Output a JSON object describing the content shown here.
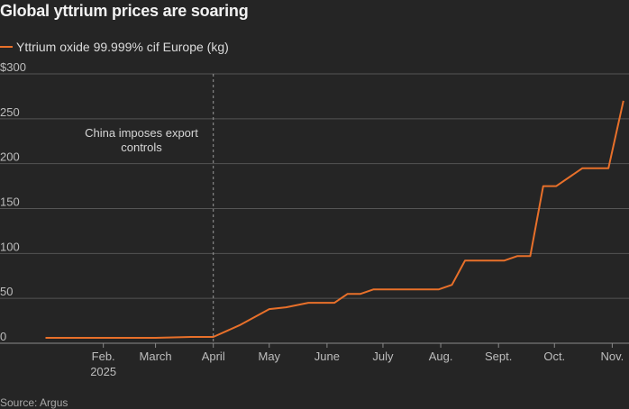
{
  "chart_data": {
    "type": "line",
    "title": "Global yttrium prices are soaring",
    "source": "Source: Argus",
    "y_tick_labels": [
      "$300",
      "250",
      "200",
      "150",
      "100",
      "50",
      "0"
    ],
    "y_ticks": [
      300,
      250,
      200,
      150,
      100,
      50,
      0
    ],
    "ylim": [
      0,
      300
    ],
    "xlim": [
      "2024-12-24",
      "2025-11-10"
    ],
    "x_ticks": [
      {
        "date": "2025-02-01",
        "label": "Feb.",
        "sub": "2025"
      },
      {
        "date": "2025-03-01",
        "label": "March"
      },
      {
        "date": "2025-04-01",
        "label": "April"
      },
      {
        "date": "2025-05-01",
        "label": "May"
      },
      {
        "date": "2025-06-01",
        "label": "June"
      },
      {
        "date": "2025-07-01",
        "label": "July"
      },
      {
        "date": "2025-08-01",
        "label": "Aug."
      },
      {
        "date": "2025-09-01",
        "label": "Sept."
      },
      {
        "date": "2025-10-01",
        "label": "Oct."
      },
      {
        "date": "2025-11-01",
        "label": "Nov."
      }
    ],
    "grid": true,
    "legend_placement": "top-left",
    "annotations": [
      {
        "date": "2025-04-01",
        "text": [
          "China imposes export",
          "controls"
        ]
      }
    ],
    "series": [
      {
        "name": "Yttrium oxide 99.999% cif Europe (kg)",
        "color": "#e8702a",
        "points": [
          [
            "2025-01-01",
            6
          ],
          [
            "2025-02-01",
            6
          ],
          [
            "2025-03-01",
            6
          ],
          [
            "2025-03-20",
            7
          ],
          [
            "2025-04-01",
            7
          ],
          [
            "2025-04-15",
            20
          ],
          [
            "2025-05-01",
            38
          ],
          [
            "2025-05-10",
            40
          ],
          [
            "2025-05-22",
            45
          ],
          [
            "2025-06-05",
            45
          ],
          [
            "2025-06-12",
            55
          ],
          [
            "2025-06-19",
            55
          ],
          [
            "2025-06-26",
            60
          ],
          [
            "2025-07-17",
            60
          ],
          [
            "2025-07-31",
            60
          ],
          [
            "2025-08-07",
            65
          ],
          [
            "2025-08-14",
            92
          ],
          [
            "2025-08-28",
            92
          ],
          [
            "2025-09-04",
            92
          ],
          [
            "2025-09-11",
            97
          ],
          [
            "2025-09-18",
            97
          ],
          [
            "2025-09-25",
            175
          ],
          [
            "2025-10-02",
            175
          ],
          [
            "2025-10-16",
            195
          ],
          [
            "2025-10-23",
            195
          ],
          [
            "2025-10-30",
            195
          ],
          [
            "2025-11-07",
            270
          ]
        ]
      }
    ]
  }
}
